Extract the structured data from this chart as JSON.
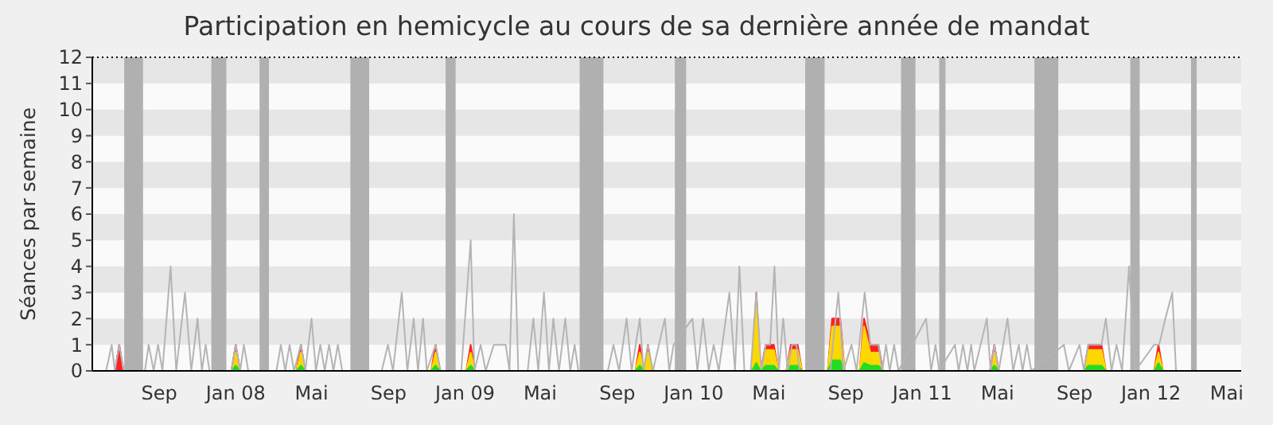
{
  "chart_data": {
    "type": "line",
    "title": "Participation en hemicycle au cours de sa dernière année de mandat",
    "ylabel": "Séances par semaine",
    "xlim": [
      "2007-05-17",
      "2012-05-24"
    ],
    "ylim": [
      0,
      12
    ],
    "yticks": [
      0,
      1,
      2,
      3,
      4,
      5,
      6,
      7,
      8,
      9,
      10,
      11,
      12
    ],
    "xticks": [
      {
        "value": "2007-09-01",
        "label": "Sep"
      },
      {
        "value": "2008-01-01",
        "label": "Jan 08"
      },
      {
        "value": "2008-05-01",
        "label": "Mai"
      },
      {
        "value": "2008-09-01",
        "label": "Sep"
      },
      {
        "value": "2009-01-01",
        "label": "Jan 09"
      },
      {
        "value": "2009-05-01",
        "label": "Mai"
      },
      {
        "value": "2009-09-01",
        "label": "Sep"
      },
      {
        "value": "2010-01-01",
        "label": "Jan 10"
      },
      {
        "value": "2010-05-01",
        "label": "Mai"
      },
      {
        "value": "2010-09-01",
        "label": "Sep"
      },
      {
        "value": "2011-01-01",
        "label": "Jan 11"
      },
      {
        "value": "2011-05-01",
        "label": "Mai"
      },
      {
        "value": "2011-09-01",
        "label": "Sep"
      },
      {
        "value": "2012-01-01",
        "label": "Jan 12"
      },
      {
        "value": "2012-05-01",
        "label": "Mai"
      }
    ],
    "bands": [
      {
        "axis": "x",
        "from": "2007-07-07",
        "to": "2007-08-06",
        "color": "#b0b0b0"
      },
      {
        "axis": "x",
        "from": "2007-11-23",
        "to": "2007-12-17",
        "color": "#b0b0b0"
      },
      {
        "axis": "x",
        "from": "2008-02-08",
        "to": "2008-02-23",
        "color": "#b0b0b0"
      },
      {
        "axis": "x",
        "from": "2008-07-02",
        "to": "2008-08-01",
        "color": "#b0b0b0"
      },
      {
        "axis": "x",
        "from": "2008-12-01",
        "to": "2008-12-17",
        "color": "#b0b0b0"
      },
      {
        "axis": "x",
        "from": "2009-07-03",
        "to": "2009-08-10",
        "color": "#b0b0b0"
      },
      {
        "axis": "x",
        "from": "2009-12-02",
        "to": "2009-12-20",
        "color": "#b0b0b0"
      },
      {
        "axis": "x",
        "from": "2010-06-28",
        "to": "2010-07-29",
        "color": "#b0b0b0"
      },
      {
        "axis": "x",
        "from": "2010-11-28",
        "to": "2010-12-21",
        "color": "#b0b0b0"
      },
      {
        "axis": "x",
        "from": "2011-01-28",
        "to": "2011-02-07",
        "color": "#b0b0b0"
      },
      {
        "axis": "x",
        "from": "2011-06-29",
        "to": "2011-08-06",
        "color": "#b0b0b0"
      },
      {
        "axis": "x",
        "from": "2011-11-29",
        "to": "2011-12-14",
        "color": "#b0b0b0"
      },
      {
        "axis": "x",
        "from": "2012-03-05",
        "to": "2012-03-14",
        "color": "#b0b0b0"
      }
    ],
    "series": [
      {
        "type": "area",
        "color": "#ff2020",
        "x": [
          "2007-06-22",
          "2007-06-29",
          "2007-07-06",
          "2007-12-25",
          "2008-01-01",
          "2008-01-08",
          "2008-04-07",
          "2008-04-14",
          "2008-04-21",
          "2008-11-08",
          "2008-11-15",
          "2008-11-22",
          "2009-01-03",
          "2009-01-10",
          "2009-01-17",
          "2009-09-30",
          "2009-10-07",
          "2009-10-14",
          "2009-10-20",
          "2009-10-27",
          "2010-04-04",
          "2010-04-11",
          "2010-04-18",
          "2010-04-26",
          "2010-05-03",
          "2010-05-09",
          "2010-05-16",
          "2010-05-29",
          "2010-06-05",
          "2010-06-16",
          "2010-06-23",
          "2010-08-03",
          "2010-08-10",
          "2010-08-23",
          "2010-08-30",
          "2010-09-23",
          "2010-09-30",
          "2010-10-10",
          "2010-10-23",
          "2010-10-30",
          "2011-04-19",
          "2011-04-26",
          "2011-05-03",
          "2011-09-16",
          "2011-09-23",
          "2011-10-14",
          "2011-10-21",
          "2012-01-06",
          "2012-01-13",
          "2012-01-20"
        ],
        "values": [
          0,
          1,
          0,
          0,
          1,
          0,
          0,
          1,
          0,
          0,
          1,
          0,
          0,
          1,
          0,
          0,
          1,
          0,
          1,
          0,
          0,
          3,
          0,
          1,
          1,
          1,
          0,
          0,
          1,
          1,
          0,
          0,
          2,
          2,
          0,
          0,
          2,
          1,
          1,
          0,
          0,
          1,
          0,
          0,
          1,
          1,
          0,
          0,
          1,
          0
        ]
      },
      {
        "type": "area",
        "color": "#ffd700",
        "x": [
          "2007-12-25",
          "2008-01-01",
          "2008-01-08",
          "2008-04-07",
          "2008-04-14",
          "2008-04-21",
          "2008-11-08",
          "2008-11-15",
          "2008-11-22",
          "2009-01-03",
          "2009-01-10",
          "2009-01-17",
          "2009-09-30",
          "2009-10-07",
          "2009-10-14",
          "2009-10-20",
          "2009-10-27",
          "2010-04-04",
          "2010-04-11",
          "2010-04-18",
          "2010-04-26",
          "2010-05-03",
          "2010-05-09",
          "2010-05-16",
          "2010-05-29",
          "2010-06-05",
          "2010-06-16",
          "2010-06-23",
          "2010-08-03",
          "2010-08-10",
          "2010-08-23",
          "2010-08-30",
          "2010-09-23",
          "2010-09-30",
          "2010-10-10",
          "2010-10-23",
          "2010-10-30",
          "2011-04-19",
          "2011-04-26",
          "2011-05-03",
          "2011-09-16",
          "2011-09-23",
          "2011-10-14",
          "2011-10-21",
          "2012-01-06",
          "2012-01-13",
          "2012-01-20"
        ],
        "values": [
          0,
          0.7,
          0,
          0,
          0.7,
          0,
          0,
          0.7,
          0,
          0,
          0.7,
          0,
          0,
          0.7,
          0,
          0.7,
          0,
          0,
          2.5,
          0,
          0.8,
          0.8,
          0.8,
          0,
          0,
          0.8,
          0.8,
          0,
          0,
          1.7,
          1.7,
          0,
          0,
          1.7,
          0.7,
          0.7,
          0,
          0,
          0.7,
          0,
          0,
          0.8,
          0.8,
          0,
          0,
          0.7,
          0
        ]
      },
      {
        "type": "area",
        "color": "#22dd22",
        "x": [
          "2007-12-25",
          "2008-01-01",
          "2008-01-08",
          "2008-04-07",
          "2008-04-14",
          "2008-04-21",
          "2008-11-08",
          "2008-11-15",
          "2008-11-22",
          "2009-01-03",
          "2009-01-10",
          "2009-01-17",
          "2009-09-30",
          "2009-10-07",
          "2009-10-14",
          "2009-10-20",
          "2009-10-27",
          "2010-04-04",
          "2010-04-11",
          "2010-04-18",
          "2010-04-26",
          "2010-05-03",
          "2010-05-09",
          "2010-05-16",
          "2010-05-29",
          "2010-06-05",
          "2010-06-16",
          "2010-06-23",
          "2010-08-03",
          "2010-08-10",
          "2010-08-23",
          "2010-08-30",
          "2010-09-23",
          "2010-09-30",
          "2010-10-10",
          "2010-10-23",
          "2010-10-30",
          "2011-04-19",
          "2011-04-26",
          "2011-05-03",
          "2011-09-16",
          "2011-09-23",
          "2011-10-14",
          "2011-10-21",
          "2012-01-06",
          "2012-01-13",
          "2012-01-20"
        ],
        "values": [
          0,
          0.2,
          0,
          0,
          0.2,
          0,
          0,
          0.2,
          0,
          0,
          0.2,
          0,
          0,
          0.2,
          0,
          0,
          0,
          0,
          0.3,
          0,
          0.2,
          0.2,
          0.2,
          0,
          0,
          0.2,
          0.2,
          0,
          0,
          0.4,
          0.4,
          0,
          0,
          0.3,
          0.2,
          0.2,
          0,
          0,
          0.2,
          0,
          0,
          0.2,
          0.2,
          0,
          0,
          0.3,
          0
        ]
      },
      {
        "color": "#b4b4b4",
        "x": [
          "2007-06-08",
          "2007-06-17",
          "2007-06-22",
          "2007-06-29",
          "2007-07-06",
          "2007-08-09",
          "2007-08-15",
          "2007-08-23",
          "2007-08-30",
          "2007-09-06",
          "2007-09-19",
          "2007-09-28",
          "2007-10-12",
          "2007-10-22",
          "2007-11-01",
          "2007-11-08",
          "2007-11-14",
          "2007-11-20",
          "2007-12-25",
          "2008-01-01",
          "2008-01-08",
          "2008-01-14",
          "2008-01-21",
          "2008-03-06",
          "2008-03-13",
          "2008-03-20",
          "2008-03-27",
          "2008-04-03",
          "2008-04-14",
          "2008-04-21",
          "2008-05-01",
          "2008-05-08",
          "2008-05-15",
          "2008-05-22",
          "2008-05-29",
          "2008-06-05",
          "2008-06-12",
          "2008-06-19",
          "2008-08-21",
          "2008-08-31",
          "2008-09-08",
          "2008-09-22",
          "2008-10-01",
          "2008-10-11",
          "2008-10-18",
          "2008-10-26",
          "2008-11-01",
          "2008-11-15",
          "2008-11-23",
          "2008-12-26",
          "2009-01-10",
          "2009-01-16",
          "2009-01-26",
          "2009-02-03",
          "2009-02-16",
          "2009-02-26",
          "2009-03-07",
          "2009-03-13",
          "2009-03-20",
          "2009-03-27",
          "2009-04-11",
          "2009-04-20",
          "2009-04-28",
          "2009-05-07",
          "2009-05-15",
          "2009-05-22",
          "2009-05-31",
          "2009-06-10",
          "2009-06-18",
          "2009-06-25",
          "2009-07-01",
          "2009-08-17",
          "2009-08-26",
          "2009-09-04",
          "2009-09-16",
          "2009-09-24",
          "2009-10-07",
          "2009-10-13",
          "2009-10-20",
          "2009-10-28",
          "2009-11-16",
          "2009-11-23",
          "2009-11-30",
          "2009-12-30",
          "2010-01-07",
          "2010-01-16",
          "2010-01-25",
          "2010-02-02",
          "2010-02-10",
          "2010-02-27",
          "2010-03-08",
          "2010-03-15",
          "2010-03-23",
          "2010-04-02",
          "2010-04-11",
          "2010-04-19",
          "2010-04-26",
          "2010-05-03",
          "2010-05-10",
          "2010-05-17",
          "2010-05-24",
          "2010-05-31",
          "2010-06-07",
          "2010-06-14",
          "2010-06-19",
          "2010-08-07",
          "2010-08-20",
          "2010-08-28",
          "2010-09-10",
          "2010-09-18",
          "2010-10-01",
          "2010-10-10",
          "2010-10-23",
          "2010-10-29",
          "2010-11-04",
          "2010-11-10",
          "2010-11-17",
          "2010-11-24",
          "2011-01-07",
          "2011-01-15",
          "2011-01-22",
          "2011-01-28",
          "2011-02-22",
          "2011-02-28",
          "2011-03-07",
          "2011-03-14",
          "2011-03-20",
          "2011-03-25",
          "2011-04-14",
          "2011-04-20",
          "2011-04-26",
          "2011-05-03",
          "2011-05-17",
          "2011-05-26",
          "2011-06-04",
          "2011-06-10",
          "2011-06-17",
          "2011-06-24",
          "2011-08-15",
          "2011-08-23",
          "2011-09-09",
          "2011-09-16",
          "2011-09-23",
          "2011-10-14",
          "2011-10-21",
          "2011-10-30",
          "2011-11-07",
          "2011-11-16",
          "2011-11-27",
          "2011-12-07",
          "2012-01-06",
          "2012-01-14",
          "2012-01-24",
          "2012-02-04",
          "2012-02-10",
          "2012-05-24"
        ],
        "values": [
          0,
          1,
          0,
          1,
          0,
          0,
          1,
          0,
          1,
          0,
          4,
          0,
          3,
          0,
          2,
          0,
          1,
          0,
          0,
          1,
          0,
          1,
          0,
          0,
          1,
          0,
          1,
          0,
          1,
          0,
          2,
          0,
          1,
          0,
          1,
          0,
          1,
          0,
          0,
          1,
          0,
          3,
          0,
          2,
          0,
          2,
          0,
          1,
          0,
          0,
          5,
          0,
          1,
          0,
          1,
          1,
          1,
          0,
          6,
          0,
          0,
          2,
          0,
          3,
          0,
          2,
          0,
          2,
          0,
          1,
          0,
          0,
          1,
          0,
          2,
          0,
          2,
          0,
          1,
          0,
          2,
          0,
          1,
          2,
          0,
          2,
          0,
          1,
          0,
          3,
          0,
          4,
          0,
          0,
          3,
          0,
          1,
          1,
          4,
          0,
          2,
          0,
          1,
          1,
          0,
          0,
          3,
          0,
          1,
          0,
          3,
          1,
          1,
          0,
          1,
          0,
          1,
          0,
          2,
          0,
          1,
          0,
          1,
          0,
          1,
          0,
          1,
          0,
          2,
          0,
          1,
          0,
          2,
          0,
          1,
          0,
          1,
          0,
          1,
          0,
          1,
          0,
          1,
          1,
          2,
          0,
          1,
          0,
          4,
          0,
          1,
          1,
          2,
          3,
          0,
          0
        ]
      }
    ]
  }
}
